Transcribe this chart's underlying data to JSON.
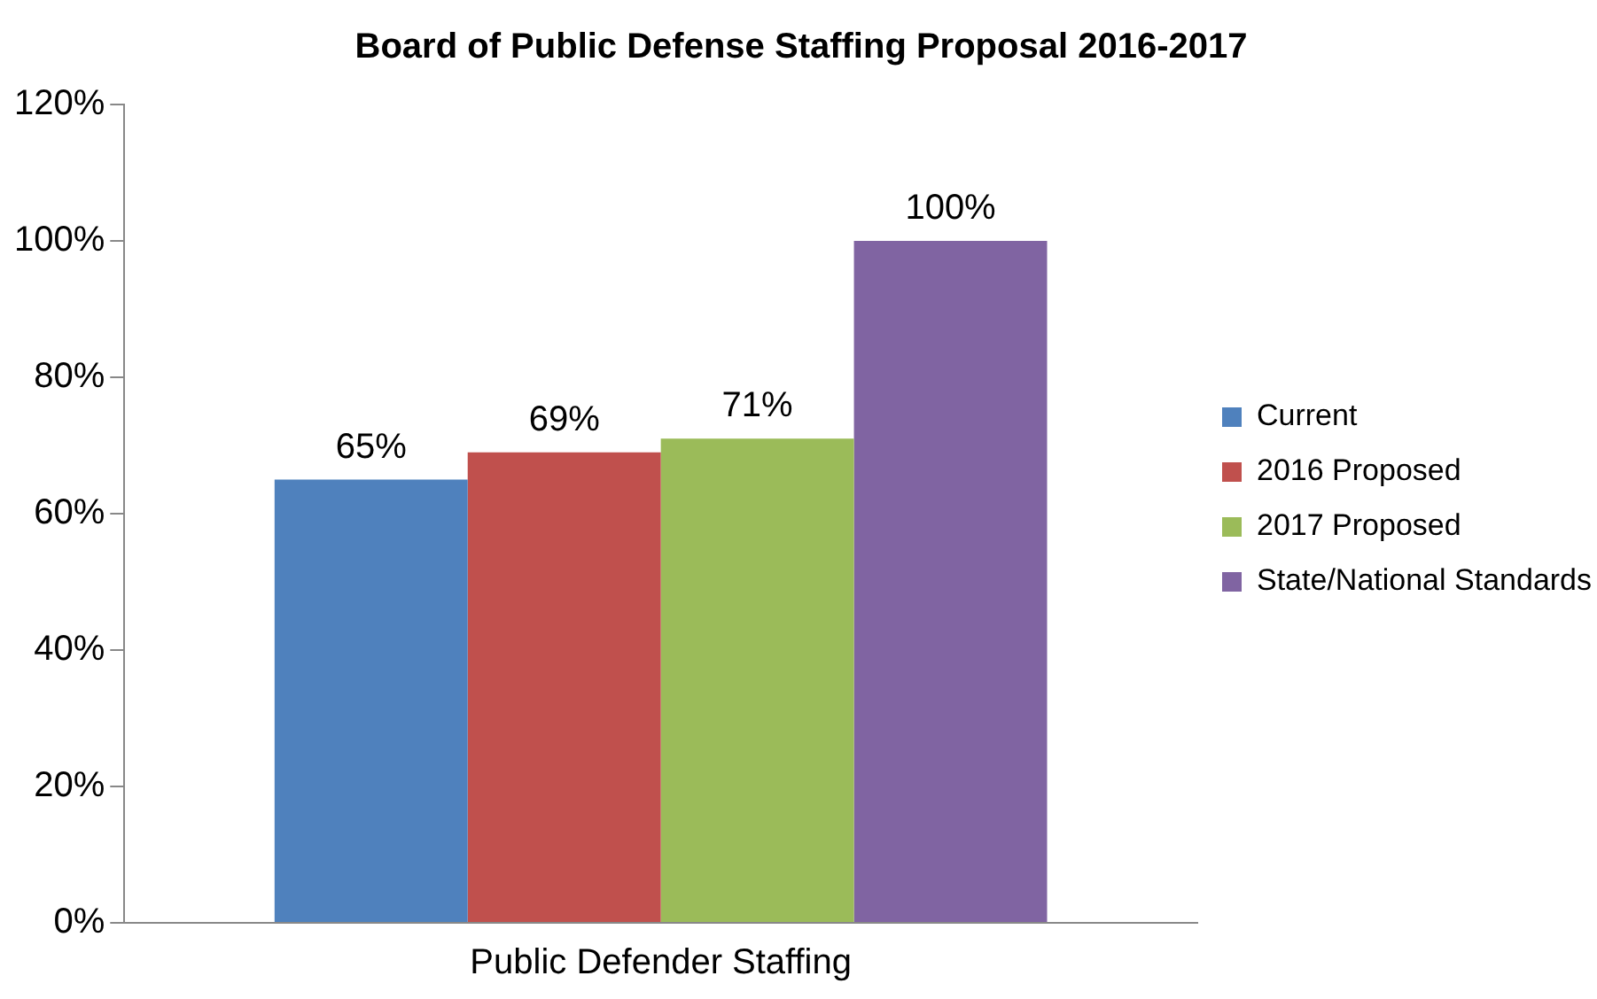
{
  "chart_data": {
    "type": "bar",
    "title": "Board of Public Defense Staffing Proposal 2016-2017",
    "categories": [
      "Public Defender Staffing"
    ],
    "series": [
      {
        "name": "Current",
        "color": "#4f81bd",
        "values": [
          65
        ],
        "value_labels": [
          "65%"
        ]
      },
      {
        "name": "2016 Proposed",
        "color": "#c0504d",
        "values": [
          69
        ],
        "value_labels": [
          "69%"
        ]
      },
      {
        "name": "2017 Proposed",
        "color": "#9bbb59",
        "values": [
          71
        ],
        "value_labels": [
          "71%"
        ]
      },
      {
        "name": "State/National Standards",
        "color": "#8064a2",
        "values": [
          100
        ],
        "value_labels": [
          "100%"
        ]
      }
    ],
    "ylim": [
      0,
      120
    ],
    "yticks": [
      {
        "value": 0,
        "label": "0%"
      },
      {
        "value": 20,
        "label": "20%"
      },
      {
        "value": 40,
        "label": "40%"
      },
      {
        "value": 60,
        "label": "60%"
      },
      {
        "value": 80,
        "label": "80%"
      },
      {
        "value": 100,
        "label": "100%"
      },
      {
        "value": 120,
        "label": "120%"
      }
    ],
    "grid": false,
    "legend": "right"
  }
}
